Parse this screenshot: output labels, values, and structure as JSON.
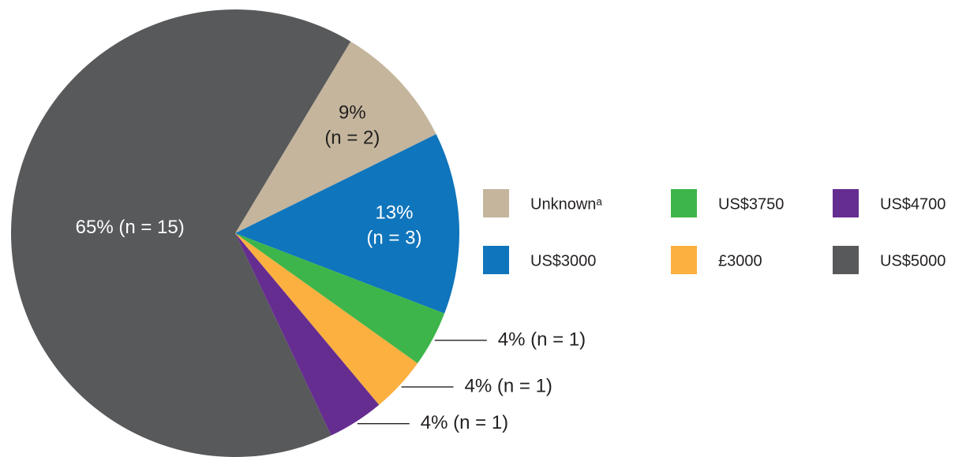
{
  "chart_data": {
    "type": "pie",
    "categories": [
      "Unknownᵃ",
      "US$3000",
      "US$3750",
      "£3000",
      "US$4700",
      "US$5000"
    ],
    "values": [
      9,
      13,
      4,
      4,
      4,
      65
    ],
    "value_labels": [
      "9% (n = 2)",
      "13% (n = 3)",
      "4% (n = 1)",
      "4% (n = 1)",
      "4% (n = 1)",
      "65% (n = 15)"
    ],
    "colors": [
      "#c4b59c",
      "#0f75bc",
      "#3db54a",
      "#fbb040",
      "#662d91",
      "#58595b"
    ],
    "legend": "right"
  }
}
